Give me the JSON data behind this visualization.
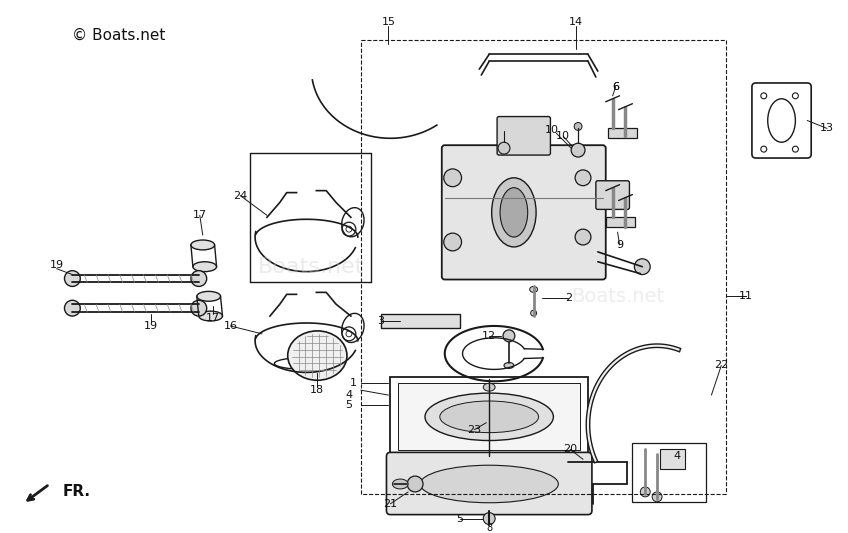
{
  "bg_color": "#ffffff",
  "line_color": "#1a1a1a",
  "text_color": "#111111",
  "fig_width": 8.48,
  "fig_height": 5.33,
  "dpi": 100,
  "watermark": "© Boats.net",
  "watermark_faint": "Boats.net",
  "fr_label": "FR."
}
